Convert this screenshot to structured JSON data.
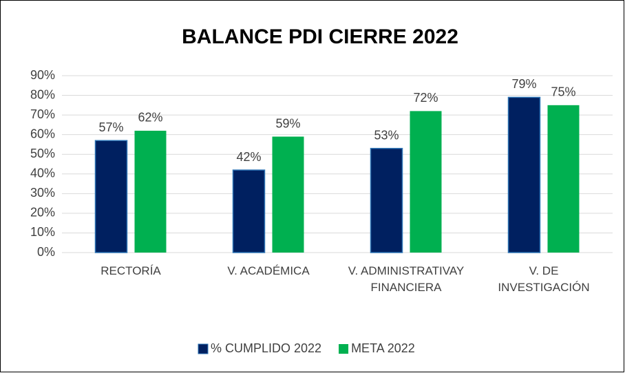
{
  "chart_data": {
    "type": "bar",
    "title": "BALANCE PDI CIERRE 2022",
    "categories": [
      "RECTORÍA",
      "V. ACADÉMICA",
      "V. ADMINISTRATIVAY FINANCIERA",
      "V. DE INVESTIGACIÓN"
    ],
    "series": [
      {
        "name": "% CUMPLIDO 2022",
        "color": "#002060",
        "values": [
          57,
          42,
          53,
          79
        ],
        "value_labels": [
          "57%",
          "42%",
          "53%",
          "79%"
        ]
      },
      {
        "name": "META 2022",
        "color": "#00b050",
        "values": [
          62,
          59,
          72,
          75
        ],
        "value_labels": [
          "62%",
          "59%",
          "72%",
          "75%"
        ]
      }
    ],
    "ylim": [
      0,
      90
    ],
    "yticks": [
      {
        "value": 0,
        "label": "0%"
      },
      {
        "value": 10,
        "label": "10%"
      },
      {
        "value": 20,
        "label": "20%"
      },
      {
        "value": 30,
        "label": "30%"
      },
      {
        "value": 40,
        "label": "40%"
      },
      {
        "value": 50,
        "label": "50%"
      },
      {
        "value": 60,
        "label": "60%"
      },
      {
        "value": 70,
        "label": "70%"
      },
      {
        "value": 80,
        "label": "80%"
      },
      {
        "value": 90,
        "label": "90%"
      }
    ],
    "grid": true,
    "legend": "bottom"
  }
}
